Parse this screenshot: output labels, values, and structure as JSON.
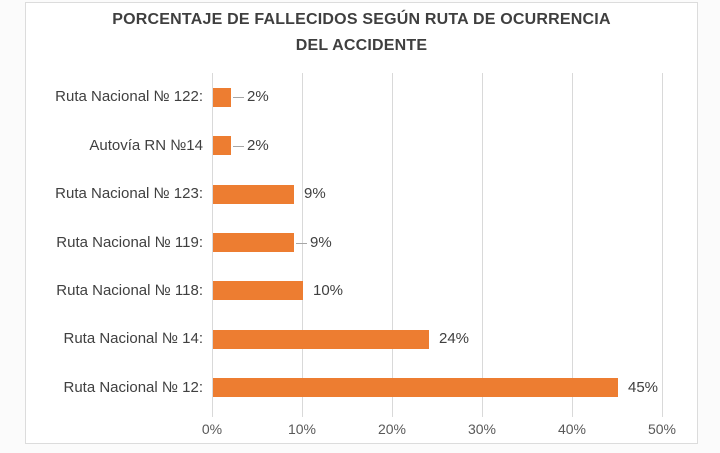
{
  "chart_data": {
    "type": "bar",
    "orientation": "horizontal",
    "title_line1": "PORCENTAJE DE FALLECIDOS SEGÚN RUTA DE OCURRENCIA",
    "title_line2": "DEL ACCIDENTE",
    "categories": [
      "Ruta Nacional № 122:",
      "Autovía RN №14",
      "Ruta Nacional № 123:",
      "Ruta Nacional № 119:",
      "Ruta Nacional № 118:",
      "Ruta Nacional № 14:",
      "Ruta Nacional № 12:"
    ],
    "values": [
      2,
      2,
      9,
      9,
      10,
      24,
      45
    ],
    "data_labels": [
      "2%",
      "2%",
      "9%",
      "9%",
      "10%",
      "24%",
      "45%"
    ],
    "leader_lines": [
      true,
      true,
      false,
      true,
      false,
      false,
      false
    ],
    "x_ticks": [
      "0%",
      "10%",
      "20%",
      "30%",
      "40%",
      "50%"
    ],
    "x_tick_values": [
      0,
      10,
      20,
      30,
      40,
      50
    ],
    "xlim": [
      0,
      50
    ],
    "xlabel": "",
    "ylabel": "",
    "grid": true,
    "legend": "none",
    "bar_color": "#ED7D31",
    "gridline_color": "#D9D9D9",
    "text_color": "#404040",
    "tick_text_color": "#595959"
  }
}
